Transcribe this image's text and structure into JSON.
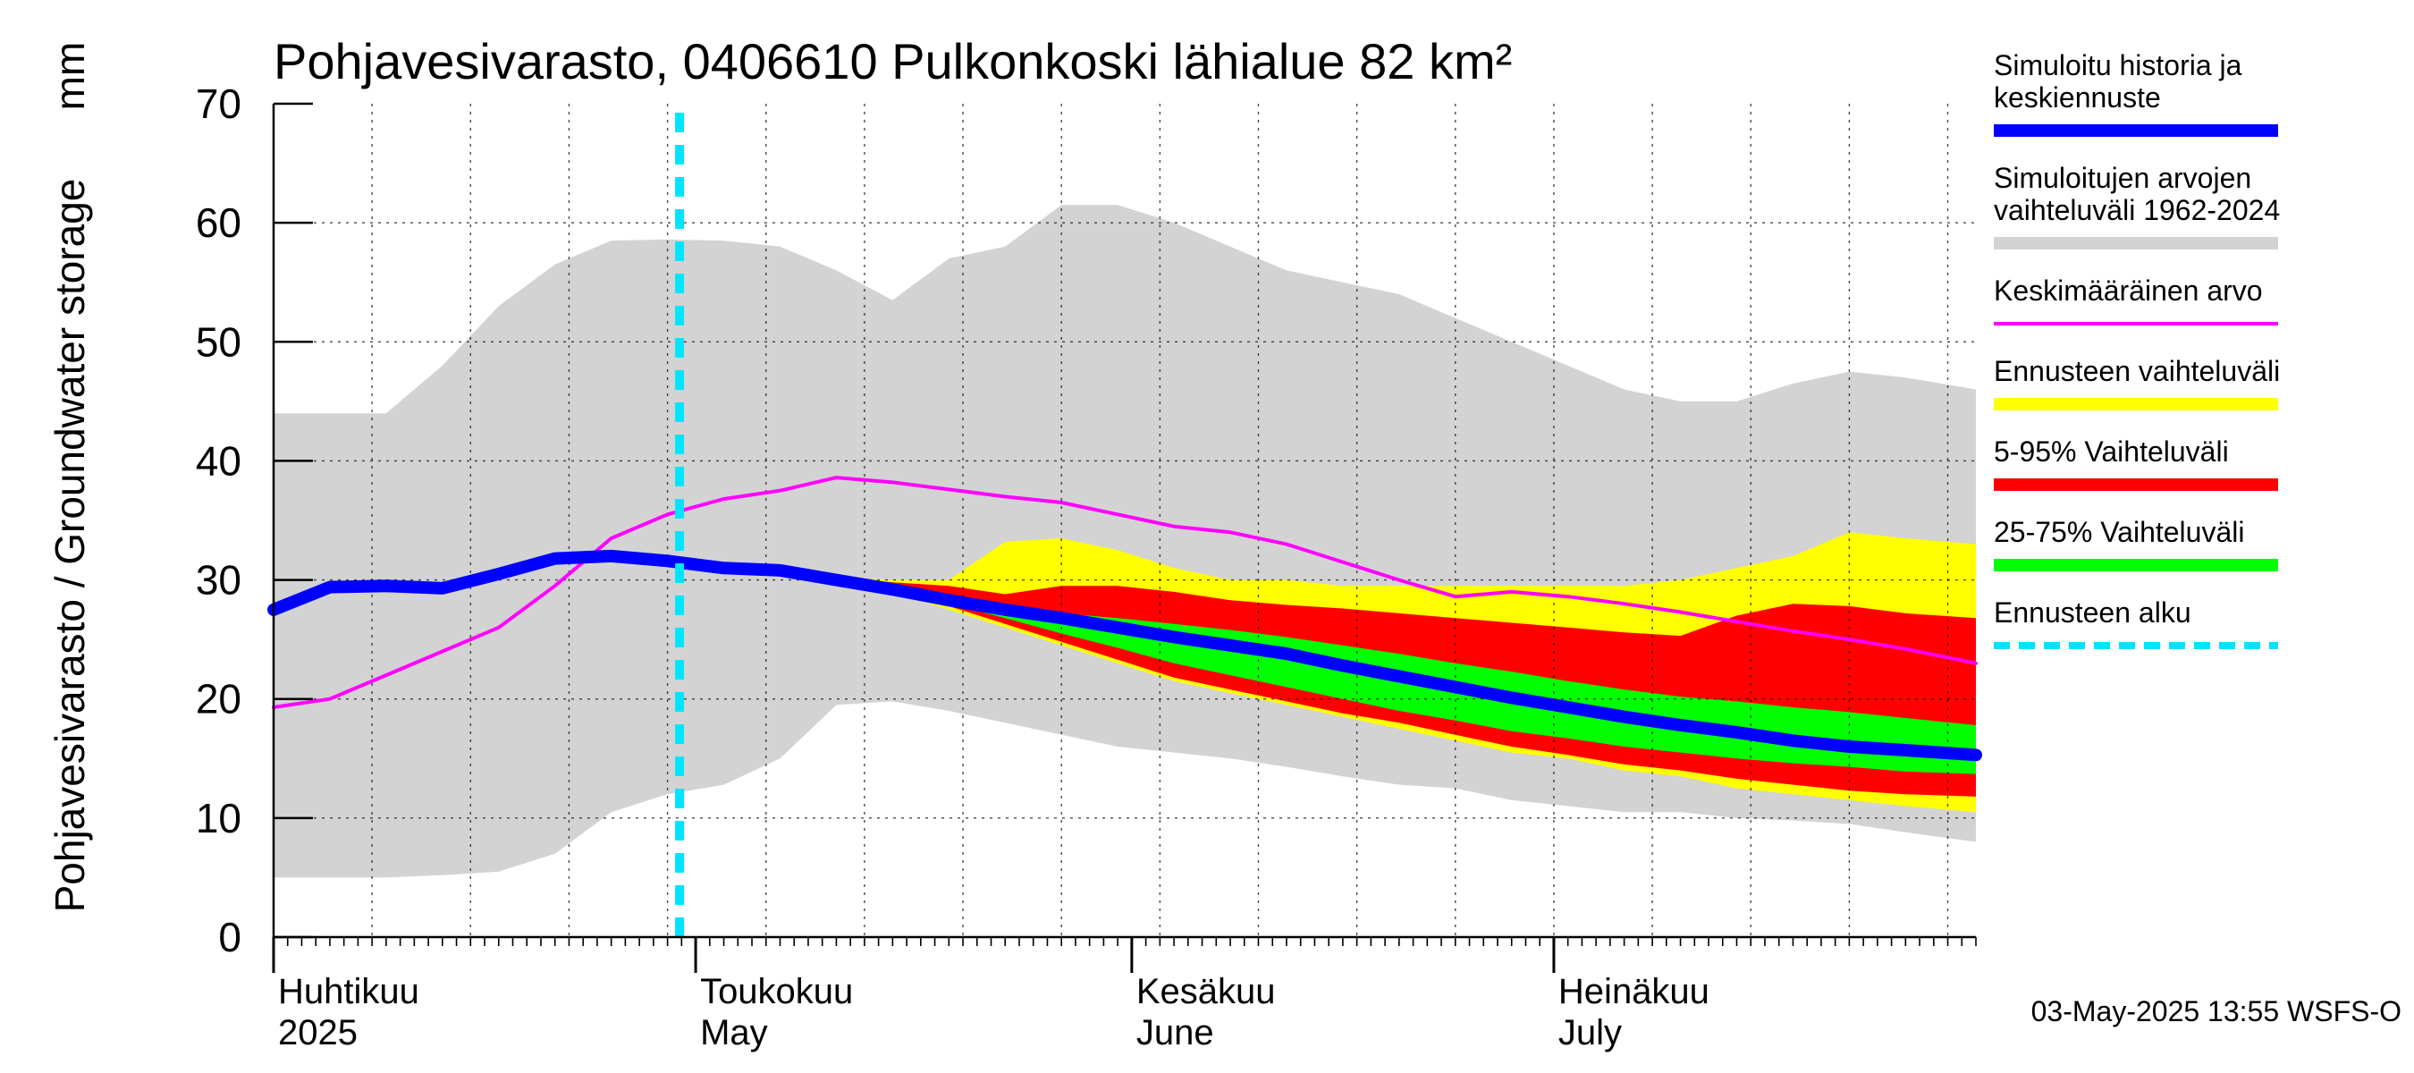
{
  "chart_data": {
    "type": "area",
    "title": "Pohjavesivarasto, 0406610 Pulkonkoski lähialue 82 km²",
    "ylabel": "Pohjavesivarasto / Groundwater storage",
    "yunit": "mm",
    "ylim": [
      0,
      70
    ],
    "yticks": [
      "0",
      "10",
      "20",
      "30",
      "40",
      "50",
      "60",
      "70"
    ],
    "xlim_days": [
      0,
      121
    ],
    "months": [
      {
        "fi": "Huhtikuu",
        "en": "2025",
        "day": 0
      },
      {
        "fi": "Toukokuu",
        "en": "May",
        "day": 30
      },
      {
        "fi": "Kesäkuu",
        "en": "June",
        "day": 61
      },
      {
        "fi": "Heinäkuu",
        "en": "July",
        "day": 91
      }
    ],
    "forecast_start_day": 30,
    "timestamp": "03-May-2025 13:55 WSFS-O",
    "x": [
      0,
      4,
      8,
      12,
      16,
      20,
      24,
      28,
      32,
      36,
      40,
      44,
      48,
      52,
      56,
      60,
      64,
      68,
      72,
      76,
      80,
      84,
      88,
      92,
      96,
      100,
      104,
      108,
      112,
      116,
      121
    ],
    "series": [
      {
        "name": "Simuloitujen arvojen vaihteluväli 1962-2024 (max)",
        "color": "#d3d3d3",
        "values": [
          44,
          44,
          44,
          48,
          53,
          56.5,
          58.5,
          58.6,
          58.5,
          58,
          56,
          53.5,
          57,
          58,
          61.5,
          61.5,
          60,
          58,
          56,
          55,
          54,
          52,
          50,
          48,
          46,
          45,
          45,
          46.5,
          47.5,
          47,
          46
        ]
      },
      {
        "name": "Simuloitujen arvojen vaihteluväli 1962-2024 (min)",
        "color": "#d3d3d3",
        "values": [
          5,
          5,
          5,
          5.2,
          5.5,
          7,
          10.5,
          12,
          12.8,
          15,
          19.5,
          19.8,
          19,
          18,
          17,
          16,
          15.5,
          15,
          14.3,
          13.5,
          12.8,
          12.5,
          11.5,
          11,
          10.5,
          10.5,
          10,
          9.8,
          9.5,
          8.8,
          8
        ]
      },
      {
        "name": "Ennusteen vaihteluväli (max)",
        "color": "#ffff00",
        "values": [
          null,
          null,
          null,
          null,
          null,
          null,
          null,
          null,
          31,
          30.9,
          30.2,
          30,
          30,
          33.2,
          33.5,
          32.5,
          31,
          30,
          30,
          29.5,
          29.5,
          29.5,
          29.5,
          29.5,
          29.5,
          30,
          31,
          32,
          34,
          33.5,
          33
        ]
      },
      {
        "name": "Ennusteen vaihteluväli (min)",
        "color": "#ffff00",
        "values": [
          null,
          null,
          null,
          null,
          null,
          null,
          null,
          null,
          31,
          30.9,
          30,
          29,
          27.5,
          26,
          24.5,
          23,
          21.5,
          20.5,
          19.5,
          18.5,
          17.5,
          16.5,
          15.5,
          15,
          14,
          13.5,
          12.5,
          12,
          11.5,
          11,
          10.5
        ]
      },
      {
        "name": "5-95% Vaihteluväli (max)",
        "color": "#ff0000",
        "values": [
          null,
          null,
          null,
          null,
          null,
          null,
          null,
          null,
          31,
          30.9,
          30.2,
          29.8,
          29.5,
          28.8,
          29.5,
          29.5,
          29,
          28.3,
          27.9,
          27.6,
          27.2,
          26.8,
          26.4,
          26,
          25.6,
          25.3,
          27,
          28,
          27.8,
          27.2,
          26.8
        ]
      },
      {
        "name": "5-95% Vaihteluväli (min)",
        "color": "#ff0000",
        "values": [
          null,
          null,
          null,
          null,
          null,
          null,
          null,
          null,
          31,
          30.9,
          30,
          29,
          27.8,
          26.3,
          24.8,
          23.3,
          21.8,
          20.8,
          19.8,
          18.8,
          18,
          17,
          16,
          15.3,
          14.5,
          14,
          13.3,
          12.8,
          12.3,
          12,
          11.8
        ]
      },
      {
        "name": "25-75% Vaihteluväli (max)",
        "color": "#00ff00",
        "values": [
          null,
          null,
          null,
          null,
          null,
          null,
          null,
          null,
          31,
          30.9,
          30.2,
          29.5,
          28.5,
          27.8,
          27.2,
          26.8,
          26.3,
          25.8,
          25.2,
          24.5,
          23.8,
          23,
          22.3,
          21.5,
          20.8,
          20.2,
          19.8,
          19.3,
          18.9,
          18.4,
          17.8
        ]
      },
      {
        "name": "25-75% Vaihteluväli (min)",
        "color": "#00ff00",
        "values": [
          null,
          null,
          null,
          null,
          null,
          null,
          null,
          null,
          31,
          30.9,
          30,
          29.2,
          28,
          26.8,
          25.5,
          24.3,
          23,
          22,
          21,
          20,
          19,
          18.2,
          17.3,
          16.7,
          16,
          15.5,
          15,
          14.6,
          14.3,
          13.9,
          13.7
        ]
      },
      {
        "name": "Simuloitu historia ja keskiennuste",
        "color": "#0000ff",
        "values": [
          27.5,
          29.4,
          29.5,
          29.3,
          30.5,
          31.8,
          32,
          31.6,
          31,
          30.8,
          30,
          29.2,
          28.3,
          27.5,
          26.8,
          26,
          25.2,
          24.5,
          23.8,
          22.8,
          21.9,
          21,
          20.1,
          19.3,
          18.5,
          17.8,
          17.2,
          16.5,
          16,
          15.7,
          15.3
        ]
      },
      {
        "name": "Keskimääräinen arvo",
        "color": "#ff00ff",
        "values": [
          19.3,
          20,
          22,
          24,
          26,
          29.5,
          33.5,
          35.5,
          36.8,
          37.5,
          38.6,
          38.2,
          37.6,
          37,
          36.5,
          35.5,
          34.5,
          34,
          33,
          31.5,
          30,
          28.6,
          29,
          28.6,
          28,
          27.3,
          26.5,
          25.7,
          25,
          24.2,
          23
        ]
      }
    ],
    "legend": [
      {
        "lines": [
          "Simuloitu historia ja",
          "keskiennuste"
        ],
        "color": "#0000ff",
        "style": "thick"
      },
      {
        "lines": [
          "Simuloitujen arvojen",
          "vaihteluväli 1962-2024"
        ],
        "color": "#d3d3d3",
        "style": "band"
      },
      {
        "lines": [
          "Keskimääräinen arvo"
        ],
        "color": "#ff00ff",
        "style": "thin"
      },
      {
        "lines": [
          "Ennusteen vaihteluväli"
        ],
        "color": "#ffff00",
        "style": "band"
      },
      {
        "lines": [
          "5-95% Vaihteluväli"
        ],
        "color": "#ff0000",
        "style": "band"
      },
      {
        "lines": [
          "25-75% Vaihteluväli"
        ],
        "color": "#00ff00",
        "style": "band"
      },
      {
        "lines": [
          "Ennusteen alku"
        ],
        "color": "#00e5ff",
        "style": "dashed"
      }
    ]
  }
}
